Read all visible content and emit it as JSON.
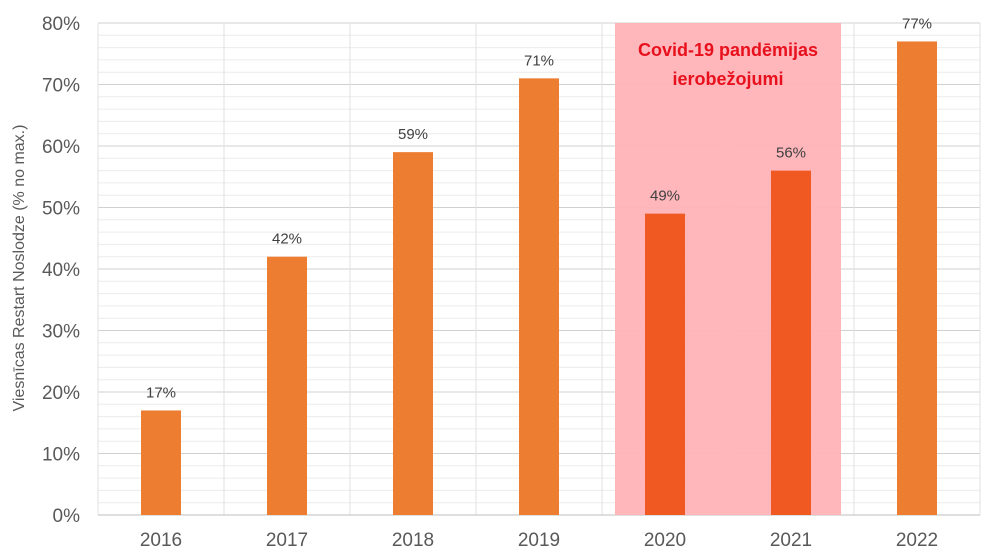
{
  "chart_data": {
    "type": "bar",
    "title": "",
    "xlabel": "",
    "ylabel": "Viesnīcas Restart Noslodze (% no max.)",
    "categories": [
      "2016",
      "2017",
      "2018",
      "2019",
      "2020",
      "2021",
      "2022"
    ],
    "values": [
      17,
      42,
      59,
      71,
      49,
      56,
      77
    ],
    "data_labels": [
      "17%",
      "42%",
      "59%",
      "71%",
      "49%",
      "56%",
      "77%"
    ],
    "ylim": [
      0,
      80
    ],
    "yticks": [
      "0%",
      "10%",
      "20%",
      "30%",
      "40%",
      "50%",
      "60%",
      "70%",
      "80%"
    ],
    "grid": true,
    "bar_color": "#ED7D31",
    "highlight_bar_color": "#F05A22",
    "highlight_categories": [
      "2020",
      "2021"
    ],
    "annotation": {
      "lines": [
        "Covid-19 pandēmijas",
        "ierobežojumi"
      ],
      "color": "#E8101C",
      "band_color": "#FFB3B8",
      "range_categories": [
        "2020",
        "2021"
      ]
    }
  }
}
